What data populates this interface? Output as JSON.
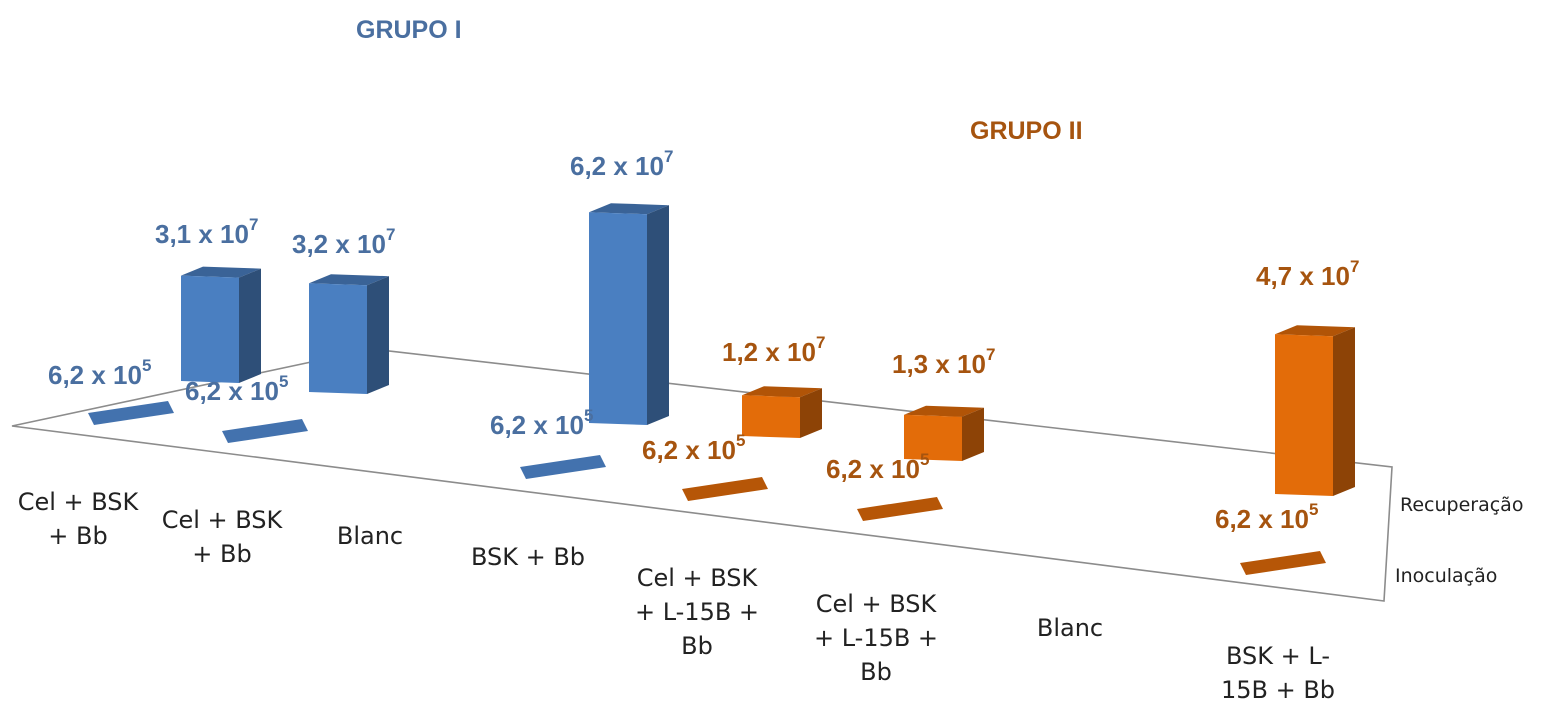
{
  "chart_data": {
    "type": "bar",
    "groups": [
      {
        "name": "GRUPO I",
        "color": "#4a7fc1"
      },
      {
        "name": "GRUPO II",
        "color": "#e36c09"
      }
    ],
    "depth_axis": [
      "Inoculação",
      "Recuperação"
    ],
    "categories": [
      {
        "label_lines": [
          "Cel + BSK",
          "+ Bb"
        ],
        "group": "GRUPO I"
      },
      {
        "label_lines": [
          "Cel + BSK",
          "+ Bb"
        ],
        "group": "GRUPO I"
      },
      {
        "label_lines": [
          "Blanc"
        ],
        "group": "GRUPO I"
      },
      {
        "label_lines": [
          "BSK + Bb"
        ],
        "group": "GRUPO I"
      },
      {
        "label_lines": [
          "Cel + BSK",
          "+ L-15B +",
          "Bb"
        ],
        "group": "GRUPO II"
      },
      {
        "label_lines": [
          "Cel + BSK",
          "+ L-15B +",
          "Bb"
        ],
        "group": "GRUPO II"
      },
      {
        "label_lines": [
          "Blanc"
        ],
        "group": "GRUPO II"
      },
      {
        "label_lines": [
          "BSK + L-",
          "15B + Bb"
        ],
        "group": "GRUPO II"
      }
    ],
    "series": [
      {
        "name": "Inoculação",
        "values": [
          620000,
          620000,
          null,
          620000,
          620000,
          620000,
          null,
          620000
        ],
        "labels": [
          {
            "mantissa": "6,2 x 10",
            "exp": "5"
          },
          {
            "mantissa": "6,2 x 10",
            "exp": "5"
          },
          null,
          {
            "mantissa": "6,2 x 10",
            "exp": "5"
          },
          {
            "mantissa": "6,2 x 10",
            "exp": "5"
          },
          {
            "mantissa": "6,2 x 10",
            "exp": "5"
          },
          null,
          {
            "mantissa": "6,2 x 10",
            "exp": "5"
          }
        ]
      },
      {
        "name": "Recuperação",
        "values": [
          31000000,
          32000000,
          null,
          62000000,
          12000000,
          13000000,
          null,
          47000000
        ],
        "labels": [
          {
            "mantissa": "3,1 x 10",
            "exp": "7"
          },
          {
            "mantissa": "3,2 x 10",
            "exp": "7"
          },
          null,
          {
            "mantissa": "6,2 x 10",
            "exp": "7"
          },
          {
            "mantissa": "1,2 x 10",
            "exp": "7"
          },
          {
            "mantissa": "1,3 x 10",
            "exp": "7"
          },
          null,
          {
            "mantissa": "4,7 x 10",
            "exp": "7"
          }
        ]
      }
    ]
  }
}
